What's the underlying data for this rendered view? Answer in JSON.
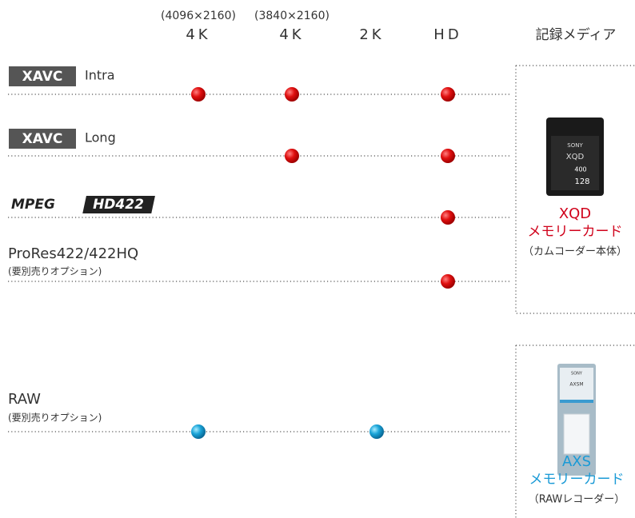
{
  "columns": [
    {
      "sub": "(4096×2160)",
      "label": "4K"
    },
    {
      "sub": "(3840×2160)",
      "label": "4K"
    },
    {
      "label": "2K"
    },
    {
      "label": "HD"
    }
  ],
  "media_header": "記録メディア",
  "rows": [
    {
      "badge": "XAVC",
      "label": "Intra"
    },
    {
      "badge": "XAVC",
      "label": "Long"
    },
    {
      "logo_left": "MPEG",
      "logo_right": "HD422"
    },
    {
      "label": "ProRes422/422HQ",
      "note": "(要別売りオプション)"
    },
    {
      "label": "RAW",
      "note": "(要別売りオプション)"
    }
  ],
  "media": [
    {
      "name": "XQD",
      "kind": "メモリーカード",
      "note": "（カムコーダー本体）",
      "card": {
        "brand": "SONY",
        "model": "XQD",
        "speed": "400",
        "capacity": "128"
      }
    },
    {
      "name": "AXS",
      "kind": "メモリーカード",
      "note": "（RAWレコーダー）",
      "card": {
        "brand": "SONY",
        "model": "AXSM"
      }
    }
  ]
}
